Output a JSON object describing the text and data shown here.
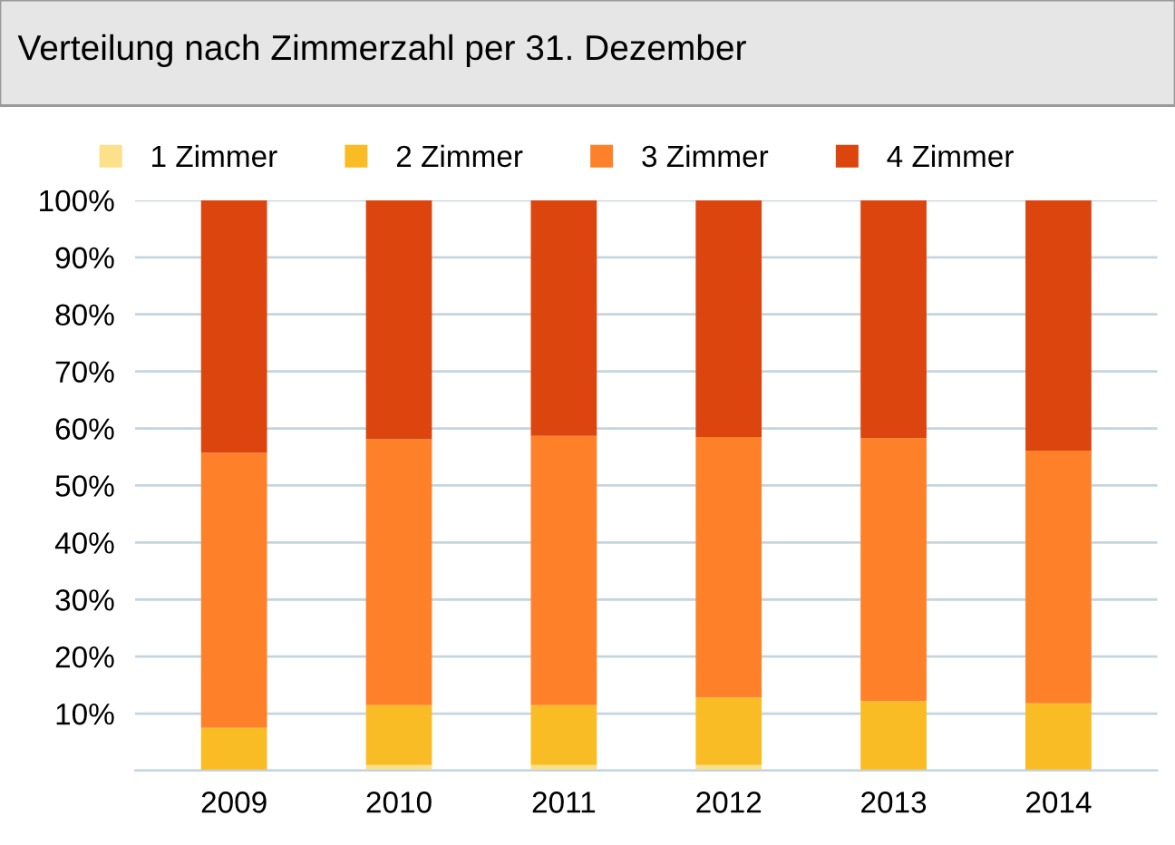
{
  "chart_data": {
    "type": "bar",
    "title": "Verteilung nach Zimmerzahl per 31. Dezember",
    "stacked": true,
    "categories": [
      "2009",
      "2010",
      "2011",
      "2012",
      "2013",
      "2014"
    ],
    "series": [
      {
        "name": "1 Zimmer",
        "color": "#fde08a",
        "values": [
          0,
          1,
          1,
          1,
          0,
          0
        ]
      },
      {
        "name": "2 Zimmer",
        "color": "#f9bc25",
        "values": [
          7.5,
          10.5,
          10.5,
          11.8,
          12.2,
          11.8
        ]
      },
      {
        "name": "3 Zimmer",
        "color": "#fe812a",
        "values": [
          48.2,
          46.6,
          47.2,
          45.7,
          46.1,
          44.3
        ]
      },
      {
        "name": "4 Zimmer",
        "color": "#dc460e",
        "values": [
          44.3,
          41.9,
          41.3,
          41.5,
          41.7,
          43.9
        ]
      }
    ],
    "ylim": [
      0,
      100
    ],
    "yticks": [
      {
        "value": 0,
        "label": null
      },
      {
        "value": 10,
        "label": "10%"
      },
      {
        "value": 20,
        "label": "20%"
      },
      {
        "value": 30,
        "label": "30%"
      },
      {
        "value": 40,
        "label": "40%"
      },
      {
        "value": 50,
        "label": "50%"
      },
      {
        "value": 60,
        "label": "60%"
      },
      {
        "value": 70,
        "label": "70%"
      },
      {
        "value": 80,
        "label": "80%"
      },
      {
        "value": 90,
        "label": "90%"
      },
      {
        "value": 100,
        "label": "100%"
      }
    ],
    "grid": "y",
    "legend": "top left"
  }
}
